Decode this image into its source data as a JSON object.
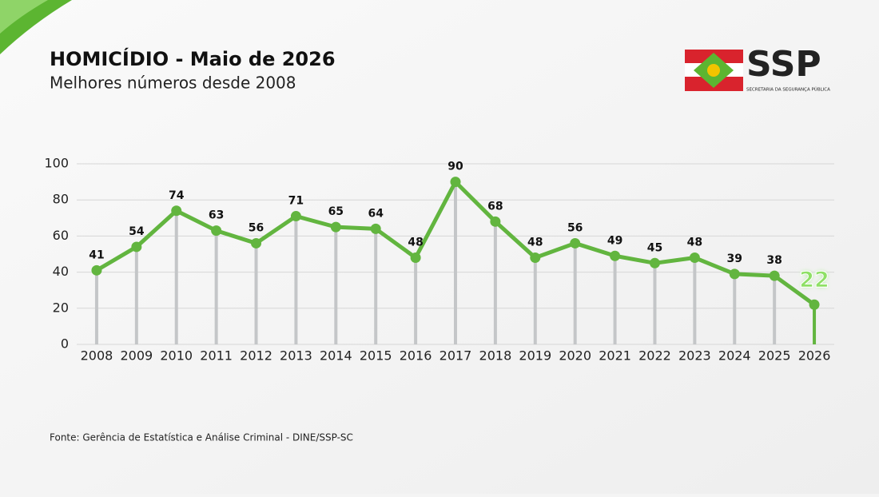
{
  "chart_data": {
    "type": "line",
    "title": "HOMICÍDIO - Maio de 2026",
    "subtitle": "Melhores números desde 2008",
    "source": "Fonte: Gerência de Estatística e Análise Criminal - DINE/SSP-SC",
    "logo": {
      "text": "SSP",
      "caption": "SECRETARIA DA SEGURANÇA PÚBLICA"
    },
    "categories": [
      "2008",
      "2009",
      "2010",
      "2011",
      "2012",
      "2013",
      "2014",
      "2015",
      "2016",
      "2017",
      "2018",
      "2019",
      "2020",
      "2021",
      "2022",
      "2023",
      "2024",
      "2025",
      "2026"
    ],
    "series": [
      {
        "name": "Homicídios",
        "color": "#62b53f",
        "values": [
          41,
          54,
          74,
          63,
          56,
          71,
          65,
          64,
          48,
          90,
          68,
          48,
          56,
          49,
          45,
          48,
          39,
          38,
          22
        ]
      }
    ],
    "ylim": [
      0,
      100
    ],
    "yticks": [
      0,
      20,
      40,
      60,
      80,
      100
    ],
    "grid": true
  }
}
